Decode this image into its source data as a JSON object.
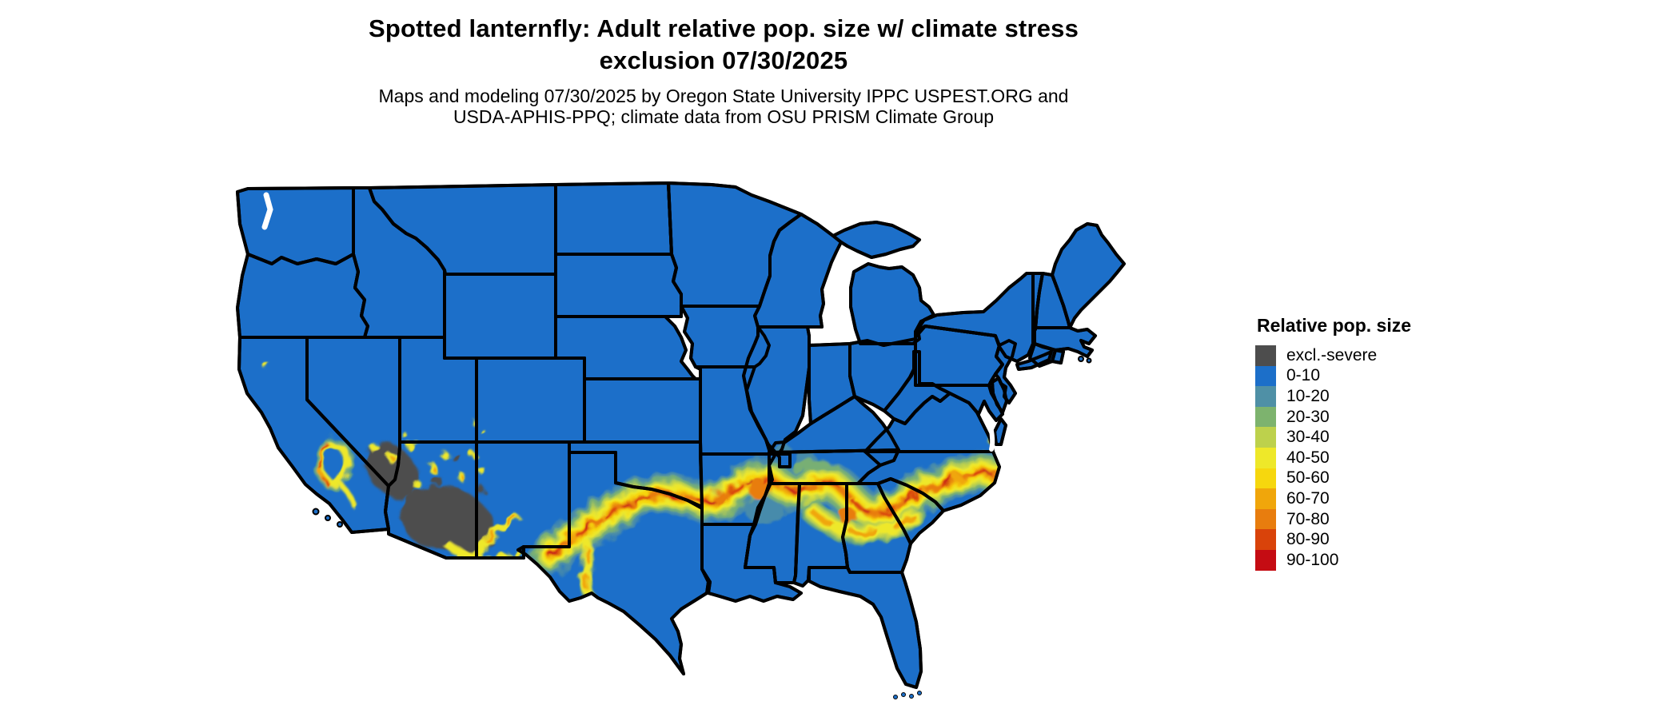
{
  "title": {
    "line1": "Spotted lanternfly: Adult relative pop. size w/ climate stress",
    "line2": "exclusion 07/30/2025"
  },
  "subtitle": {
    "line1": "Maps and modeling 07/30/2025 by Oregon State University IPPC USPEST.ORG and",
    "line2": "USDA-APHIS-PPQ; climate data from OSU PRISM Climate Group"
  },
  "legend": {
    "title": "Relative pop. size",
    "items": [
      {
        "label": "excl.-severe",
        "color": "#4d4d4d"
      },
      {
        "label": "0-10",
        "color": "#1c6fc9"
      },
      {
        "label": "10-20",
        "color": "#4f90a6"
      },
      {
        "label": "20-30",
        "color": "#7db36e"
      },
      {
        "label": "30-40",
        "color": "#bdd14c"
      },
      {
        "label": "40-50",
        "color": "#eee829"
      },
      {
        "label": "50-60",
        "color": "#f6d70e"
      },
      {
        "label": "60-70",
        "color": "#f0a60b"
      },
      {
        "label": "70-80",
        "color": "#e87d0e"
      },
      {
        "label": "80-90",
        "color": "#d9430a"
      },
      {
        "label": "90-100",
        "color": "#c50c13"
      }
    ]
  },
  "map": {
    "border_color": "#000000",
    "water_color": "#ffffff"
  }
}
